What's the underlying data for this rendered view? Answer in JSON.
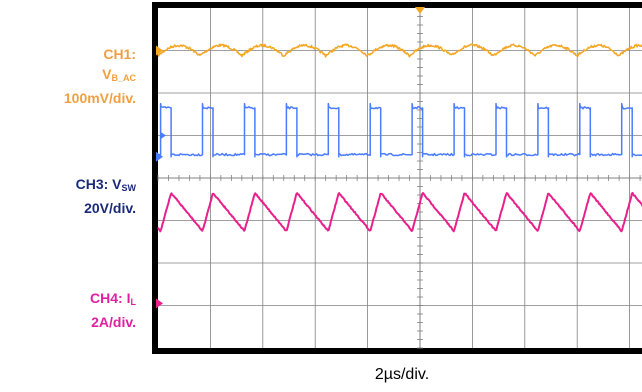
{
  "labels": {
    "ch1": {
      "line1": "CH1:",
      "sym": "V",
      "sub": "B_AC",
      "scale": "100mV/div."
    },
    "ch3": {
      "prefix": "CH3: V",
      "sub": "SW",
      "scale": "20V/div."
    },
    "ch4": {
      "prefix": "CH4: I",
      "sub": "L",
      "scale": "2A/div."
    }
  },
  "timebase": "2µs/div.",
  "colors": {
    "ch1": "#f5a623",
    "ch3": "#4a7cff",
    "ch4": "#e8208c",
    "grid": "#808080",
    "frame": "#000000"
  },
  "chart_data": {
    "type": "line",
    "x_unit": "µs",
    "xlim": [
      0,
      20
    ],
    "time_per_div": 2,
    "divisions": {
      "x": 10,
      "y": 8
    },
    "series": [
      {
        "name": "CH1: VB_AC",
        "scale": "100mV/div.",
        "waveform": "ripple",
        "ground_div": 1.0,
        "offset_div": 1.0,
        "period_us": 1.6,
        "amplitude_div": 0.15
      },
      {
        "name": "CH3: VSW",
        "scale": "20V/div.",
        "waveform": "square",
        "ground_div": 3.5,
        "high_div": 2.35,
        "low_div": 3.45,
        "period_us": 1.6,
        "first_rise_us": 0.1,
        "high_time_us": 0.4
      },
      {
        "name": "CH4: IL",
        "scale": "2A/div.",
        "waveform": "triangle",
        "ground_div": 6.95,
        "peak_div": 4.35,
        "trough_div": 5.25,
        "period_us": 1.6,
        "first_peak_us": 0.5
      }
    ]
  }
}
